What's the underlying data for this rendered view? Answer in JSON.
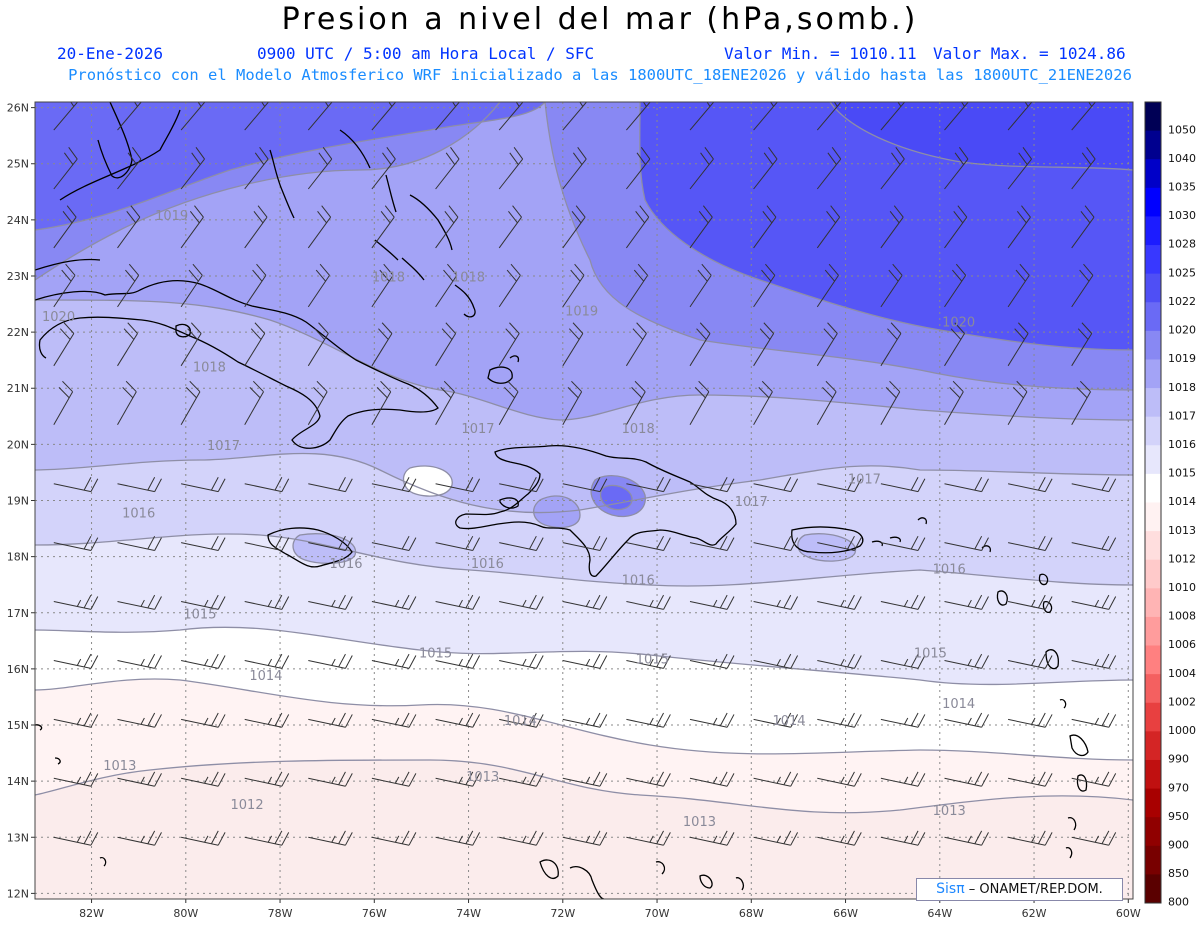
{
  "header": {
    "title": "Presion a nivel del mar (hPa,somb.)",
    "date": "20-Ene-2026",
    "time": "0900 UTC / 5:00 am Hora Local / SFC",
    "min_label": "Valor Min. = 1010.11",
    "max_label": "Valor Max. = 1024.86",
    "model_line": "Pronóstico con el Modelo Atmosferico WRF inicializado a las 1800UTC_18ENE2026 y válido hasta las  1800UTC_21ENE2026"
  },
  "axes": {
    "lat_labels": [
      "26N",
      "25N",
      "24N",
      "23N",
      "22N",
      "21N",
      "20N",
      "19N",
      "18N",
      "17N",
      "16N",
      "15N",
      "14N",
      "13N",
      "12N"
    ],
    "lon_labels": [
      "82W",
      "80W",
      "78W",
      "76W",
      "74W",
      "72W",
      "70W",
      "68W",
      "66W",
      "64W",
      "62W",
      "60W"
    ]
  },
  "colorbar": {
    "levels": [
      "1050",
      "1040",
      "1035",
      "1030",
      "1028",
      "1025",
      "1022",
      "1020",
      "1019",
      "1018",
      "1017",
      "1016",
      "1015",
      "1014",
      "1013",
      "1012",
      "1010",
      "1008",
      "1006",
      "1004",
      "1002",
      "1000",
      "990",
      "970",
      "950",
      "900",
      "850",
      "800"
    ],
    "colors": [
      "#000055",
      "#00008f",
      "#0000c8",
      "#0000ff",
      "#1c1cff",
      "#3838ff",
      "#4f4ff5",
      "#6a6af5",
      "#8888f3",
      "#a3a3f6",
      "#bdbdf8",
      "#d3d3fa",
      "#e7e7fc",
      "#ffffff",
      "#fff2f2",
      "#ffdede",
      "#ffcaca",
      "#ffb4b4",
      "#ff9c9c",
      "#ff8080",
      "#f46060",
      "#e84040",
      "#d42525",
      "#c01010",
      "#a80000",
      "#900000",
      "#780000",
      "#5a0000"
    ]
  },
  "contour_labels": [
    {
      "text": "1020",
      "lon": -82.7,
      "lat": 22.2
    },
    {
      "text": "1019",
      "lon": -80.3,
      "lat": 24.0
    },
    {
      "text": "1018",
      "lon": -75.7,
      "lat": 22.9
    },
    {
      "text": "1018",
      "lon": -74.0,
      "lat": 22.9
    },
    {
      "text": "1019",
      "lon": -71.6,
      "lat": 22.3
    },
    {
      "text": "1020",
      "lon": -63.6,
      "lat": 22.1
    },
    {
      "text": "1018",
      "lon": -79.5,
      "lat": 21.3
    },
    {
      "text": "1017",
      "lon": -79.2,
      "lat": 19.9
    },
    {
      "text": "1017",
      "lon": -73.8,
      "lat": 20.2
    },
    {
      "text": "1018",
      "lon": -70.4,
      "lat": 20.2
    },
    {
      "text": "1016",
      "lon": -81.0,
      "lat": 18.7
    },
    {
      "text": "1016",
      "lon": -76.6,
      "lat": 17.8
    },
    {
      "text": "1016",
      "lon": -73.6,
      "lat": 17.8
    },
    {
      "text": "1016",
      "lon": -70.4,
      "lat": 17.5
    },
    {
      "text": "1017",
      "lon": -68.0,
      "lat": 18.9
    },
    {
      "text": "1017",
      "lon": -65.6,
      "lat": 19.3
    },
    {
      "text": "1016",
      "lon": -63.8,
      "lat": 17.7
    },
    {
      "text": "1015",
      "lon": -79.7,
      "lat": 16.9
    },
    {
      "text": "1015",
      "lon": -74.7,
      "lat": 16.2
    },
    {
      "text": "1015",
      "lon": -70.1,
      "lat": 16.1
    },
    {
      "text": "1015",
      "lon": -64.2,
      "lat": 16.2
    },
    {
      "text": "1014",
      "lon": -78.3,
      "lat": 15.8
    },
    {
      "text": "1014",
      "lon": -72.9,
      "lat": 15.0
    },
    {
      "text": "1014",
      "lon": -67.2,
      "lat": 15.0
    },
    {
      "text": "1014",
      "lon": -63.6,
      "lat": 15.3
    },
    {
      "text": "1013",
      "lon": -81.4,
      "lat": 14.2
    },
    {
      "text": "1013",
      "lon": -73.7,
      "lat": 14.0
    },
    {
      "text": "1013",
      "lon": -69.1,
      "lat": 13.2
    },
    {
      "text": "1013",
      "lon": -63.8,
      "lat": 13.4
    },
    {
      "text": "1012",
      "lon": -78.7,
      "lat": 13.5
    }
  ],
  "credit": {
    "brand": "Sisπ",
    "text": "– ONAMET/REP.DOM."
  },
  "colors": {
    "title": "#000000",
    "subtitle": "#0033ff",
    "model_line": "#1a8cff",
    "contour": "#8e8ea6",
    "coast": "#000000"
  }
}
